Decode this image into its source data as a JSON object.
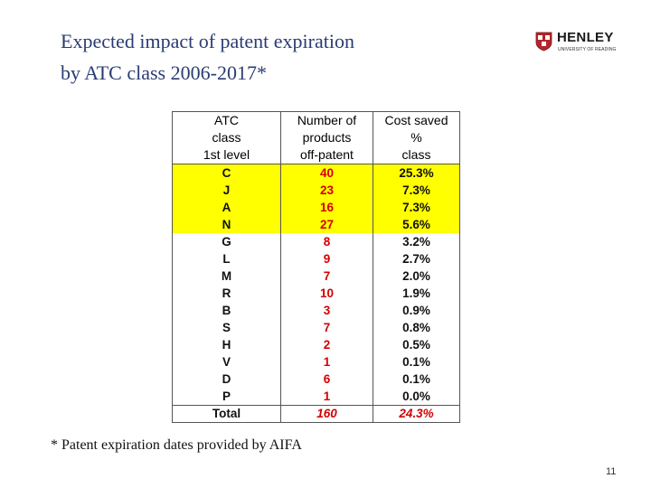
{
  "title": {
    "line1": "Expected impact of patent expiration",
    "line2": "by ATC class 2006-2017*"
  },
  "logo": {
    "name": "HENLEY",
    "subtitle": "UNIVERSITY OF READING",
    "crest_icon": "university-crest-icon"
  },
  "table": {
    "headers": [
      [
        "ATC",
        "class",
        "1st level"
      ],
      [
        "Number of",
        "products",
        "off-patent"
      ],
      [
        "Cost saved",
        "%",
        "class"
      ]
    ],
    "rows": [
      {
        "code": "C",
        "count": "40",
        "pct": "25.3%",
        "highlight": true
      },
      {
        "code": "J",
        "count": "23",
        "pct": "7.3%",
        "highlight": true
      },
      {
        "code": "A",
        "count": "16",
        "pct": "7.3%",
        "highlight": true
      },
      {
        "code": "N",
        "count": "27",
        "pct": "5.6%",
        "highlight": true
      },
      {
        "code": "G",
        "count": "8",
        "pct": "3.2%",
        "highlight": false
      },
      {
        "code": "L",
        "count": "9",
        "pct": "2.7%",
        "highlight": false
      },
      {
        "code": "M",
        "count": "7",
        "pct": "2.0%",
        "highlight": false
      },
      {
        "code": "R",
        "count": "10",
        "pct": "1.9%",
        "highlight": false
      },
      {
        "code": "B",
        "count": "3",
        "pct": "0.9%",
        "highlight": false
      },
      {
        "code": "S",
        "count": "7",
        "pct": "0.8%",
        "highlight": false
      },
      {
        "code": "H",
        "count": "2",
        "pct": "0.5%",
        "highlight": false
      },
      {
        "code": "V",
        "count": "1",
        "pct": "0.1%",
        "highlight": false
      },
      {
        "code": "D",
        "count": "6",
        "pct": "0.1%",
        "highlight": false
      },
      {
        "code": "P",
        "count": "1",
        "pct": "0.0%",
        "highlight": false
      }
    ],
    "total": {
      "label": "Total",
      "count": "160",
      "pct": "24.3%"
    },
    "colors": {
      "highlight": "#ffff00",
      "count_text": "#d40000"
    }
  },
  "footnote": "* Patent expiration dates provided by AIFA",
  "page_number": "11"
}
